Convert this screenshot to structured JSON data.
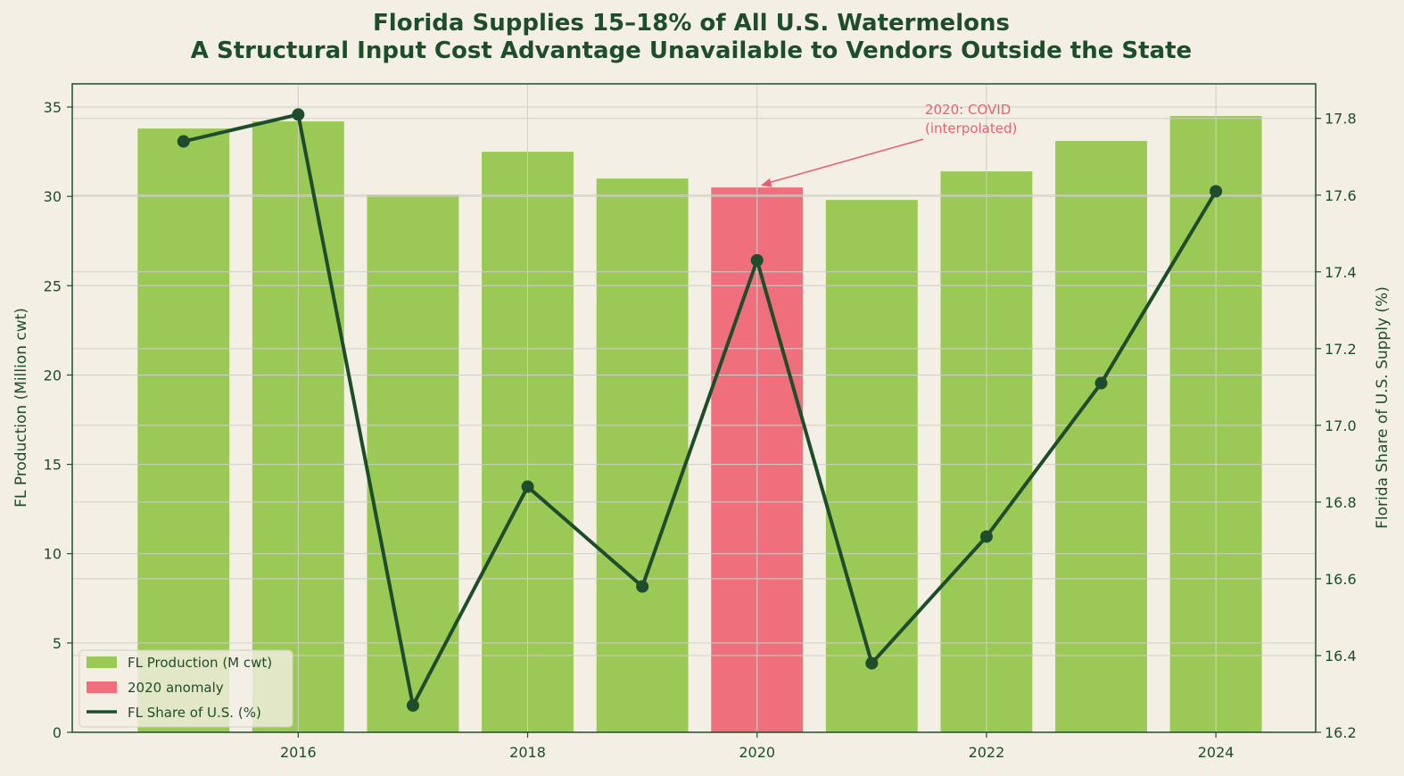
{
  "chart_data": {
    "type": "bar",
    "title_line1": "Florida Supplies 15–18% of All U.S. Watermelons",
    "title_line2": "A Structural Input Cost Advantage Unavailable to Vendors Outside the State",
    "ylabel_left": "FL Production (Million cwt)",
    "ylabel_right": "Florida Share of U.S. Supply (%)",
    "years": [
      2015,
      2016,
      2017,
      2018,
      2019,
      2020,
      2021,
      2022,
      2023,
      2024
    ],
    "x_ticks": [
      "2016",
      "2018",
      "2020",
      "2022",
      "2024"
    ],
    "x_tick_values": [
      2016,
      2018,
      2020,
      2022,
      2024
    ],
    "series": [
      {
        "name": "FL Production (M cwt)",
        "type": "bar",
        "axis": "left",
        "values": [
          33.8,
          34.2,
          30.1,
          32.5,
          31.0,
          30.5,
          29.8,
          31.4,
          33.1,
          34.5
        ],
        "color": "#9bc955"
      },
      {
        "name": "FL Share of U.S. (%)",
        "type": "line",
        "axis": "right",
        "values": [
          17.74,
          17.81,
          16.27,
          16.84,
          16.58,
          17.43,
          16.38,
          16.71,
          17.11,
          17.61
        ],
        "color": "#1e4d2b"
      }
    ],
    "highlight": {
      "year": 2020,
      "label": "2020 anomaly",
      "color": "#ef6f7c"
    },
    "annotation": {
      "line1": "2020: COVID",
      "line2": "(interpolated)",
      "target_year": 2020,
      "target_value": 30.5
    },
    "left_axis": {
      "ylim": [
        0,
        36.3
      ],
      "ticks": [
        "0",
        "5",
        "10",
        "15",
        "20",
        "25",
        "30",
        "35"
      ]
    },
    "right_axis": {
      "ylim": [
        16.2,
        17.89
      ],
      "ticks": [
        "16.2",
        "16.4",
        "16.6",
        "16.8",
        "17.0",
        "17.2",
        "17.4",
        "17.6",
        "17.8"
      ]
    },
    "xlim": [
      2014.03,
      2024.87
    ],
    "grid": true,
    "legend_position": "lower-left",
    "legend": [
      {
        "label": "FL Production (M cwt)",
        "kind": "patch",
        "color": "#9bc955"
      },
      {
        "label": "2020 anomaly",
        "kind": "patch",
        "color": "#ef6f7c"
      },
      {
        "label": "FL Share of U.S. (%)",
        "kind": "line",
        "color": "#1e4d2b"
      }
    ]
  }
}
